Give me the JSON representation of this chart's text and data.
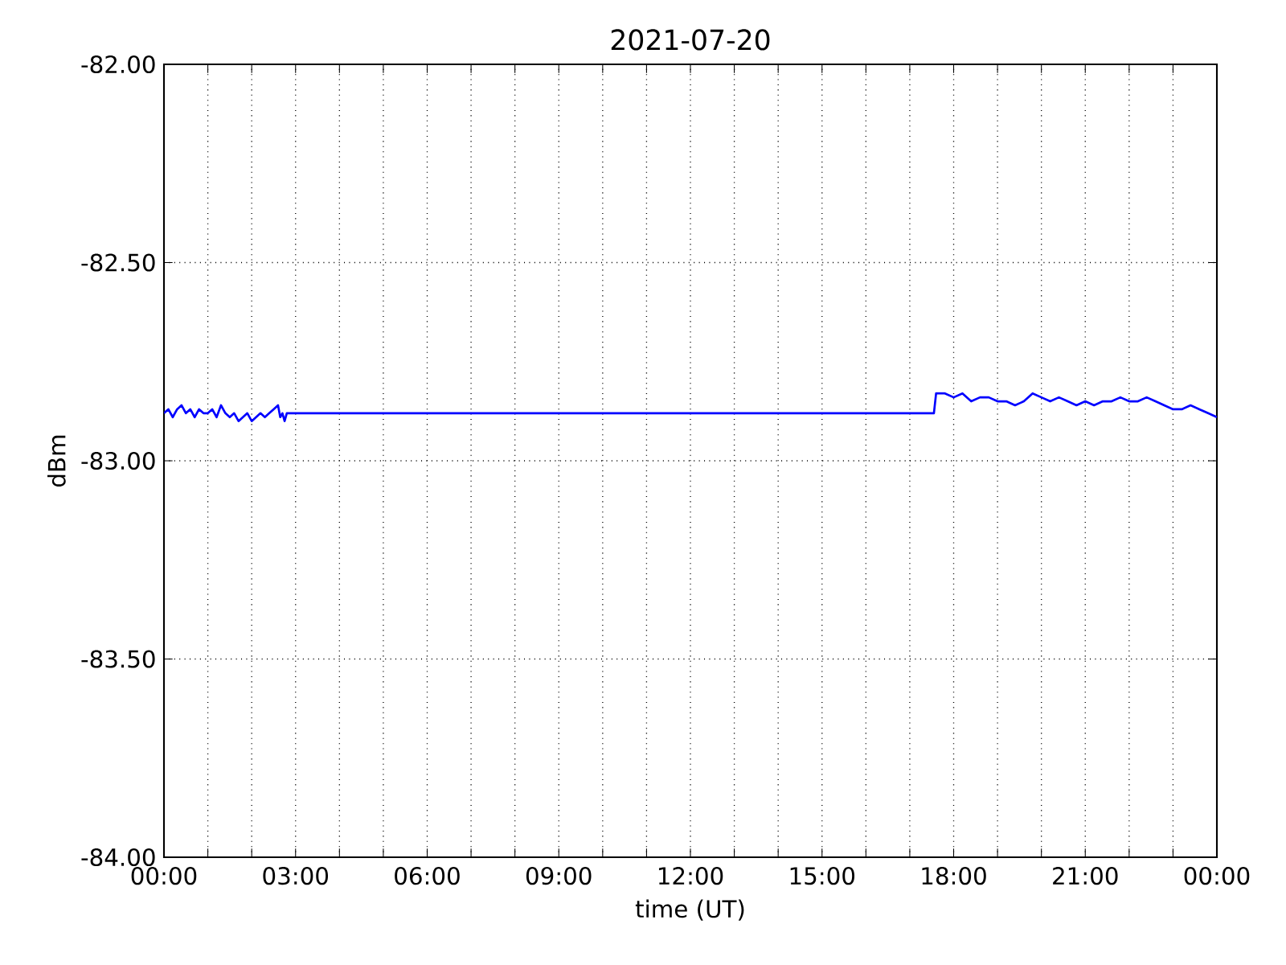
{
  "chart_data": {
    "type": "line",
    "title": "2021-07-20",
    "xlabel": "time (UT)",
    "ylabel": "dBm",
    "x": [
      0,
      0.1,
      0.2,
      0.3,
      0.4,
      0.5,
      0.6,
      0.7,
      0.8,
      0.9,
      1.0,
      1.1,
      1.2,
      1.3,
      1.4,
      1.5,
      1.6,
      1.7,
      1.8,
      1.9,
      2.0,
      2.1,
      2.2,
      2.3,
      2.4,
      2.5,
      2.6,
      2.65,
      2.7,
      2.75,
      2.8,
      17.55,
      17.6,
      17.8,
      18.0,
      18.2,
      18.4,
      18.6,
      18.8,
      19.0,
      19.2,
      19.4,
      19.6,
      19.8,
      20.0,
      20.2,
      20.4,
      20.6,
      20.8,
      21.0,
      21.2,
      21.4,
      21.6,
      21.8,
      22.0,
      22.2,
      22.4,
      22.6,
      22.8,
      23.0,
      23.2,
      23.4,
      23.6,
      23.8,
      24
    ],
    "series": [
      {
        "color": "#0000ff",
        "values": [
          -82.88,
          -82.87,
          -82.89,
          -82.87,
          -82.86,
          -82.88,
          -82.87,
          -82.89,
          -82.87,
          -82.88,
          -82.88,
          -82.87,
          -82.89,
          -82.86,
          -82.88,
          -82.89,
          -82.88,
          -82.9,
          -82.89,
          -82.88,
          -82.9,
          -82.89,
          -82.88,
          -82.89,
          -82.88,
          -82.87,
          -82.86,
          -82.89,
          -82.88,
          -82.9,
          -82.88,
          -82.88,
          -82.83,
          -82.83,
          -82.84,
          -82.83,
          -82.85,
          -82.84,
          -82.84,
          -82.85,
          -82.85,
          -82.86,
          -82.85,
          -82.83,
          -82.84,
          -82.85,
          -82.84,
          -82.85,
          -82.86,
          -82.85,
          -82.86,
          -82.85,
          -82.85,
          -82.84,
          -82.85,
          -82.85,
          -82.84,
          -82.85,
          -82.86,
          -82.87,
          -82.87,
          -82.86,
          -82.87,
          -82.88,
          -82.89
        ]
      }
    ],
    "xlim": [
      0,
      24
    ],
    "ylim": [
      -84,
      -82
    ],
    "xticks": [
      {
        "value": 0,
        "label": "00:00"
      },
      {
        "value": 1,
        "label": null
      },
      {
        "value": 2,
        "label": null
      },
      {
        "value": 3,
        "label": "03:00"
      },
      {
        "value": 4,
        "label": null
      },
      {
        "value": 5,
        "label": null
      },
      {
        "value": 6,
        "label": "06:00"
      },
      {
        "value": 7,
        "label": null
      },
      {
        "value": 8,
        "label": null
      },
      {
        "value": 9,
        "label": "09:00"
      },
      {
        "value": 10,
        "label": null
      },
      {
        "value": 11,
        "label": null
      },
      {
        "value": 12,
        "label": "12:00"
      },
      {
        "value": 13,
        "label": null
      },
      {
        "value": 14,
        "label": null
      },
      {
        "value": 15,
        "label": "15:00"
      },
      {
        "value": 16,
        "label": null
      },
      {
        "value": 17,
        "label": null
      },
      {
        "value": 18,
        "label": "18:00"
      },
      {
        "value": 19,
        "label": null
      },
      {
        "value": 20,
        "label": null
      },
      {
        "value": 21,
        "label": "21:00"
      },
      {
        "value": 22,
        "label": null
      },
      {
        "value": 23,
        "label": null
      },
      {
        "value": 24,
        "label": "00:00"
      }
    ],
    "yticks": [
      {
        "value": -84,
        "label": "-84.00"
      },
      {
        "value": -83.5,
        "label": "-83.50"
      },
      {
        "value": -83,
        "label": "-83.00"
      },
      {
        "value": -82.5,
        "label": "-82.50"
      },
      {
        "value": -82,
        "label": "-82.00"
      }
    ],
    "grid": true,
    "line_style": "solid"
  }
}
